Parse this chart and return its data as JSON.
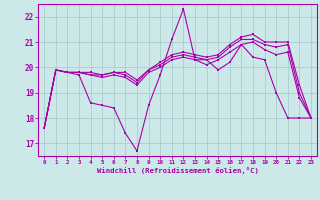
{
  "background_color": "#cce8e8",
  "grid_color": "#aacccc",
  "line_color": "#aa00aa",
  "xlabel": "Windchill (Refroidissement éolien,°C)",
  "xlim": [
    -0.5,
    23.5
  ],
  "ylim": [
    16.5,
    22.5
  ],
  "yticks": [
    17,
    18,
    19,
    20,
    21,
    22
  ],
  "xticks": [
    0,
    1,
    2,
    3,
    4,
    5,
    6,
    7,
    8,
    9,
    10,
    11,
    12,
    13,
    14,
    15,
    16,
    17,
    18,
    19,
    20,
    21,
    22,
    23
  ],
  "curves": [
    [
      17.6,
      19.9,
      19.8,
      19.7,
      18.6,
      18.5,
      18.4,
      17.4,
      16.7,
      18.5,
      19.7,
      21.1,
      22.3,
      20.3,
      20.3,
      19.9,
      20.2,
      20.9,
      20.4,
      20.3,
      19.0,
      18.0,
      18.0,
      18.0
    ],
    [
      17.6,
      19.9,
      19.8,
      19.8,
      19.8,
      19.7,
      19.8,
      19.8,
      19.5,
      19.9,
      20.2,
      20.5,
      20.6,
      20.5,
      20.4,
      20.5,
      20.9,
      21.2,
      21.3,
      21.0,
      21.0,
      21.0,
      19.3,
      18.0
    ],
    [
      17.6,
      19.9,
      19.8,
      19.8,
      19.7,
      19.7,
      19.8,
      19.7,
      19.4,
      19.9,
      20.1,
      20.4,
      20.5,
      20.4,
      20.3,
      20.4,
      20.8,
      21.1,
      21.1,
      20.9,
      20.8,
      20.9,
      19.0,
      18.0
    ],
    [
      17.6,
      19.9,
      19.8,
      19.8,
      19.7,
      19.6,
      19.7,
      19.6,
      19.3,
      19.8,
      20.0,
      20.3,
      20.4,
      20.3,
      20.1,
      20.3,
      20.6,
      20.9,
      21.0,
      20.7,
      20.5,
      20.6,
      18.8,
      18.0
    ]
  ]
}
